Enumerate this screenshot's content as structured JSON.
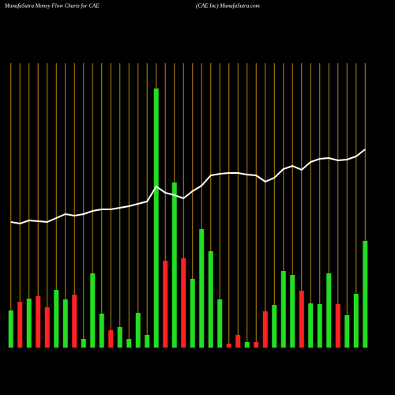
{
  "chart_data": {
    "type": "bar",
    "title": "MunafaSutra  Money Flow  Charts for CAE",
    "subtitle": "(CAE Inc) MunafaSutra.com",
    "categories": [
      null,
      null,
      null,
      null,
      null,
      null,
      null,
      null,
      null,
      null,
      null,
      null,
      null,
      null,
      null,
      null,
      null,
      null,
      null,
      null,
      null,
      null,
      null,
      null,
      null,
      null,
      null,
      null,
      null,
      null,
      null,
      null,
      null,
      null,
      null,
      null,
      null,
      null,
      null,
      null
    ],
    "values": [
      47,
      58,
      62,
      65,
      51,
      73,
      61,
      67,
      11,
      94,
      43,
      22,
      26,
      11,
      44,
      16,
      328,
      110,
      209,
      113,
      87,
      150,
      122,
      61,
      5,
      16,
      7,
      7,
      46,
      54,
      97,
      92,
      72,
      56,
      55,
      94,
      55,
      41,
      68,
      135
    ],
    "colors": [
      "#22dd22",
      "#ff2222",
      "#22dd22",
      "#ff2222",
      "#ff2222",
      "#22dd22",
      "#22dd22",
      "#ff2222",
      "#22dd22",
      "#22dd22",
      "#22dd22",
      "#ff2222",
      "#22dd22",
      "#22dd22",
      "#22dd22",
      "#22dd22",
      "#22dd22",
      "#ff2222",
      "#22dd22",
      "#ff2222",
      "#22dd22",
      "#22dd22",
      "#22dd22",
      "#22dd22",
      "#ff2222",
      "#ff2222",
      "#22dd22",
      "#ff2222",
      "#ff2222",
      "#22dd22",
      "#22dd22",
      "#22dd22",
      "#ff2222",
      "#22dd22",
      "#22dd22",
      "#22dd22",
      "#ff2222",
      "#22dd22",
      "#22dd22",
      "#22dd22"
    ],
    "line": {
      "color": "#ffffff",
      "values": [
        159,
        157,
        161,
        160,
        159,
        164,
        169,
        167,
        169,
        173,
        175,
        175,
        177,
        179,
        182,
        185,
        204,
        196,
        193,
        189,
        198,
        205,
        218,
        220,
        221,
        221,
        219,
        218,
        210,
        215,
        226,
        230,
        225,
        235,
        239,
        240,
        237,
        238,
        242,
        251
      ]
    },
    "ylim": [
      0,
      440
    ],
    "grid_color": "#b8860b"
  }
}
